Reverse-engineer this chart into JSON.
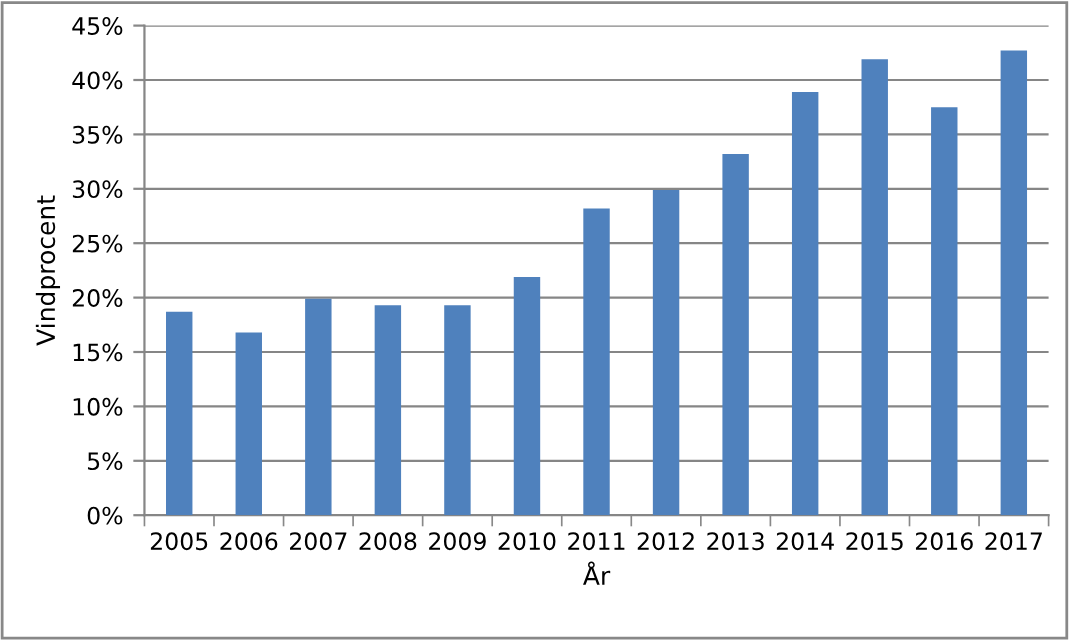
{
  "chart_data": {
    "type": "bar",
    "xlabel": "År",
    "ylabel": "Vindprocent",
    "categories": [
      "2005",
      "2006",
      "2007",
      "2008",
      "2009",
      "2010",
      "2011",
      "2012",
      "2013",
      "2014",
      "2015",
      "2016",
      "2017"
    ],
    "values": [
      18.7,
      16.8,
      19.9,
      19.3,
      19.3,
      21.9,
      28.2,
      29.9,
      33.2,
      38.9,
      41.9,
      37.5,
      42.7
    ],
    "color": "#4f81bd",
    "ylim": [
      0,
      45
    ],
    "yticks": [
      {
        "value": 0,
        "label": "0%"
      },
      {
        "value": 5,
        "label": "5%"
      },
      {
        "value": 10,
        "label": "10%"
      },
      {
        "value": 15,
        "label": "15%"
      },
      {
        "value": 20,
        "label": "20%"
      },
      {
        "value": 25,
        "label": "25%"
      },
      {
        "value": 30,
        "label": "30%"
      },
      {
        "value": 35,
        "label": "35%"
      },
      {
        "value": 40,
        "label": "40%"
      },
      {
        "value": 45,
        "label": "45%"
      }
    ],
    "grid": "y"
  }
}
